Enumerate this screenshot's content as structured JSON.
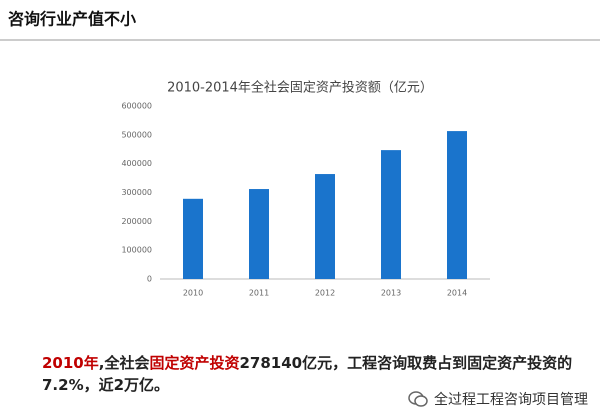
{
  "header": {
    "title": "咨询行业产值不小"
  },
  "chart_data": {
    "type": "bar",
    "title": "2010-2014年全社会固定资产投资额（亿元）",
    "categories": [
      "2010",
      "2011",
      "2012",
      "2013",
      "2014"
    ],
    "values": [
      278140,
      312000,
      364000,
      447000,
      513000
    ],
    "color": "#1a74cc",
    "ylim": [
      0,
      600000
    ],
    "yticks": [
      0,
      100000,
      200000,
      300000,
      400000,
      500000,
      600000
    ],
    "grid": false
  },
  "caption": {
    "segments": [
      {
        "text": "2010年",
        "color": "#c00000"
      },
      {
        "text": ",全社会",
        "color": "#222222"
      },
      {
        "text": "固定资产投资",
        "color": "#c00000"
      },
      {
        "text": "278140亿元，工程咨询取费占到固定资产投资的7.2%，近2万亿。",
        "color": "#222222"
      }
    ]
  },
  "watermark": "全过程工程咨询项目管理"
}
